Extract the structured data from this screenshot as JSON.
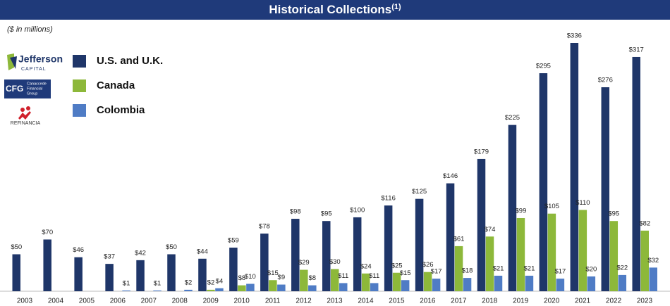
{
  "chart_data": {
    "type": "bar",
    "title": "Historical Collections",
    "title_note": "(1)",
    "subtitle": "($ in millions)",
    "categories": [
      "2003",
      "2004",
      "2005",
      "2006",
      "2007",
      "2008",
      "2009",
      "2010",
      "2011",
      "2012",
      "2013",
      "2014",
      "2015",
      "2016",
      "2017",
      "2018",
      "2019",
      "2020",
      "2021",
      "2022",
      "2023"
    ],
    "series": [
      {
        "name": "U.S. and U.K.",
        "color": "#1f3669",
        "values": [
          50,
          70,
          46,
          37,
          42,
          50,
          44,
          59,
          78,
          98,
          95,
          100,
          116,
          125,
          146,
          179,
          225,
          295,
          336,
          276,
          317
        ],
        "value_labels": [
          "$50",
          "$70",
          "$46",
          "$37",
          "$42",
          "$50",
          "$44",
          "$59",
          "$78",
          "$98",
          "$95",
          "$100",
          "$116",
          "$125",
          "$146",
          "$179",
          "$225",
          "$295",
          "$336",
          "$276",
          "$317"
        ]
      },
      {
        "name": "Canada",
        "color": "#8db83a",
        "values": [
          null,
          null,
          null,
          null,
          null,
          null,
          2,
          8,
          15,
          29,
          30,
          24,
          25,
          26,
          61,
          74,
          99,
          105,
          110,
          95,
          82
        ],
        "value_labels": [
          null,
          null,
          null,
          null,
          null,
          null,
          "$2",
          "$8",
          "$15",
          "$29",
          "$30",
          "$24",
          "$25",
          "$26",
          "$61",
          "$74",
          "$99",
          "$105",
          "$110",
          "$95",
          "$82"
        ]
      },
      {
        "name": "Colombia",
        "color": "#4f7cc5",
        "values": [
          null,
          null,
          null,
          1,
          1,
          2,
          4,
          10,
          9,
          8,
          11,
          11,
          15,
          17,
          18,
          21,
          21,
          17,
          20,
          22,
          32
        ],
        "value_labels": [
          null,
          null,
          null,
          "$1",
          "$1",
          "$2",
          "$4",
          "$10",
          "$9",
          "$8",
          "$11",
          "$11",
          "$15",
          "$17",
          "$18",
          "$21",
          "$21",
          "$17",
          "$20",
          "$22",
          "$32"
        ]
      }
    ]
  },
  "logos": {
    "jefferson": [
      "Jefferson",
      "CAPITAL"
    ],
    "cfg": [
      "CFG",
      "Canaccede",
      "Financial",
      "Group"
    ],
    "refinancia": "REFINANCIA"
  }
}
